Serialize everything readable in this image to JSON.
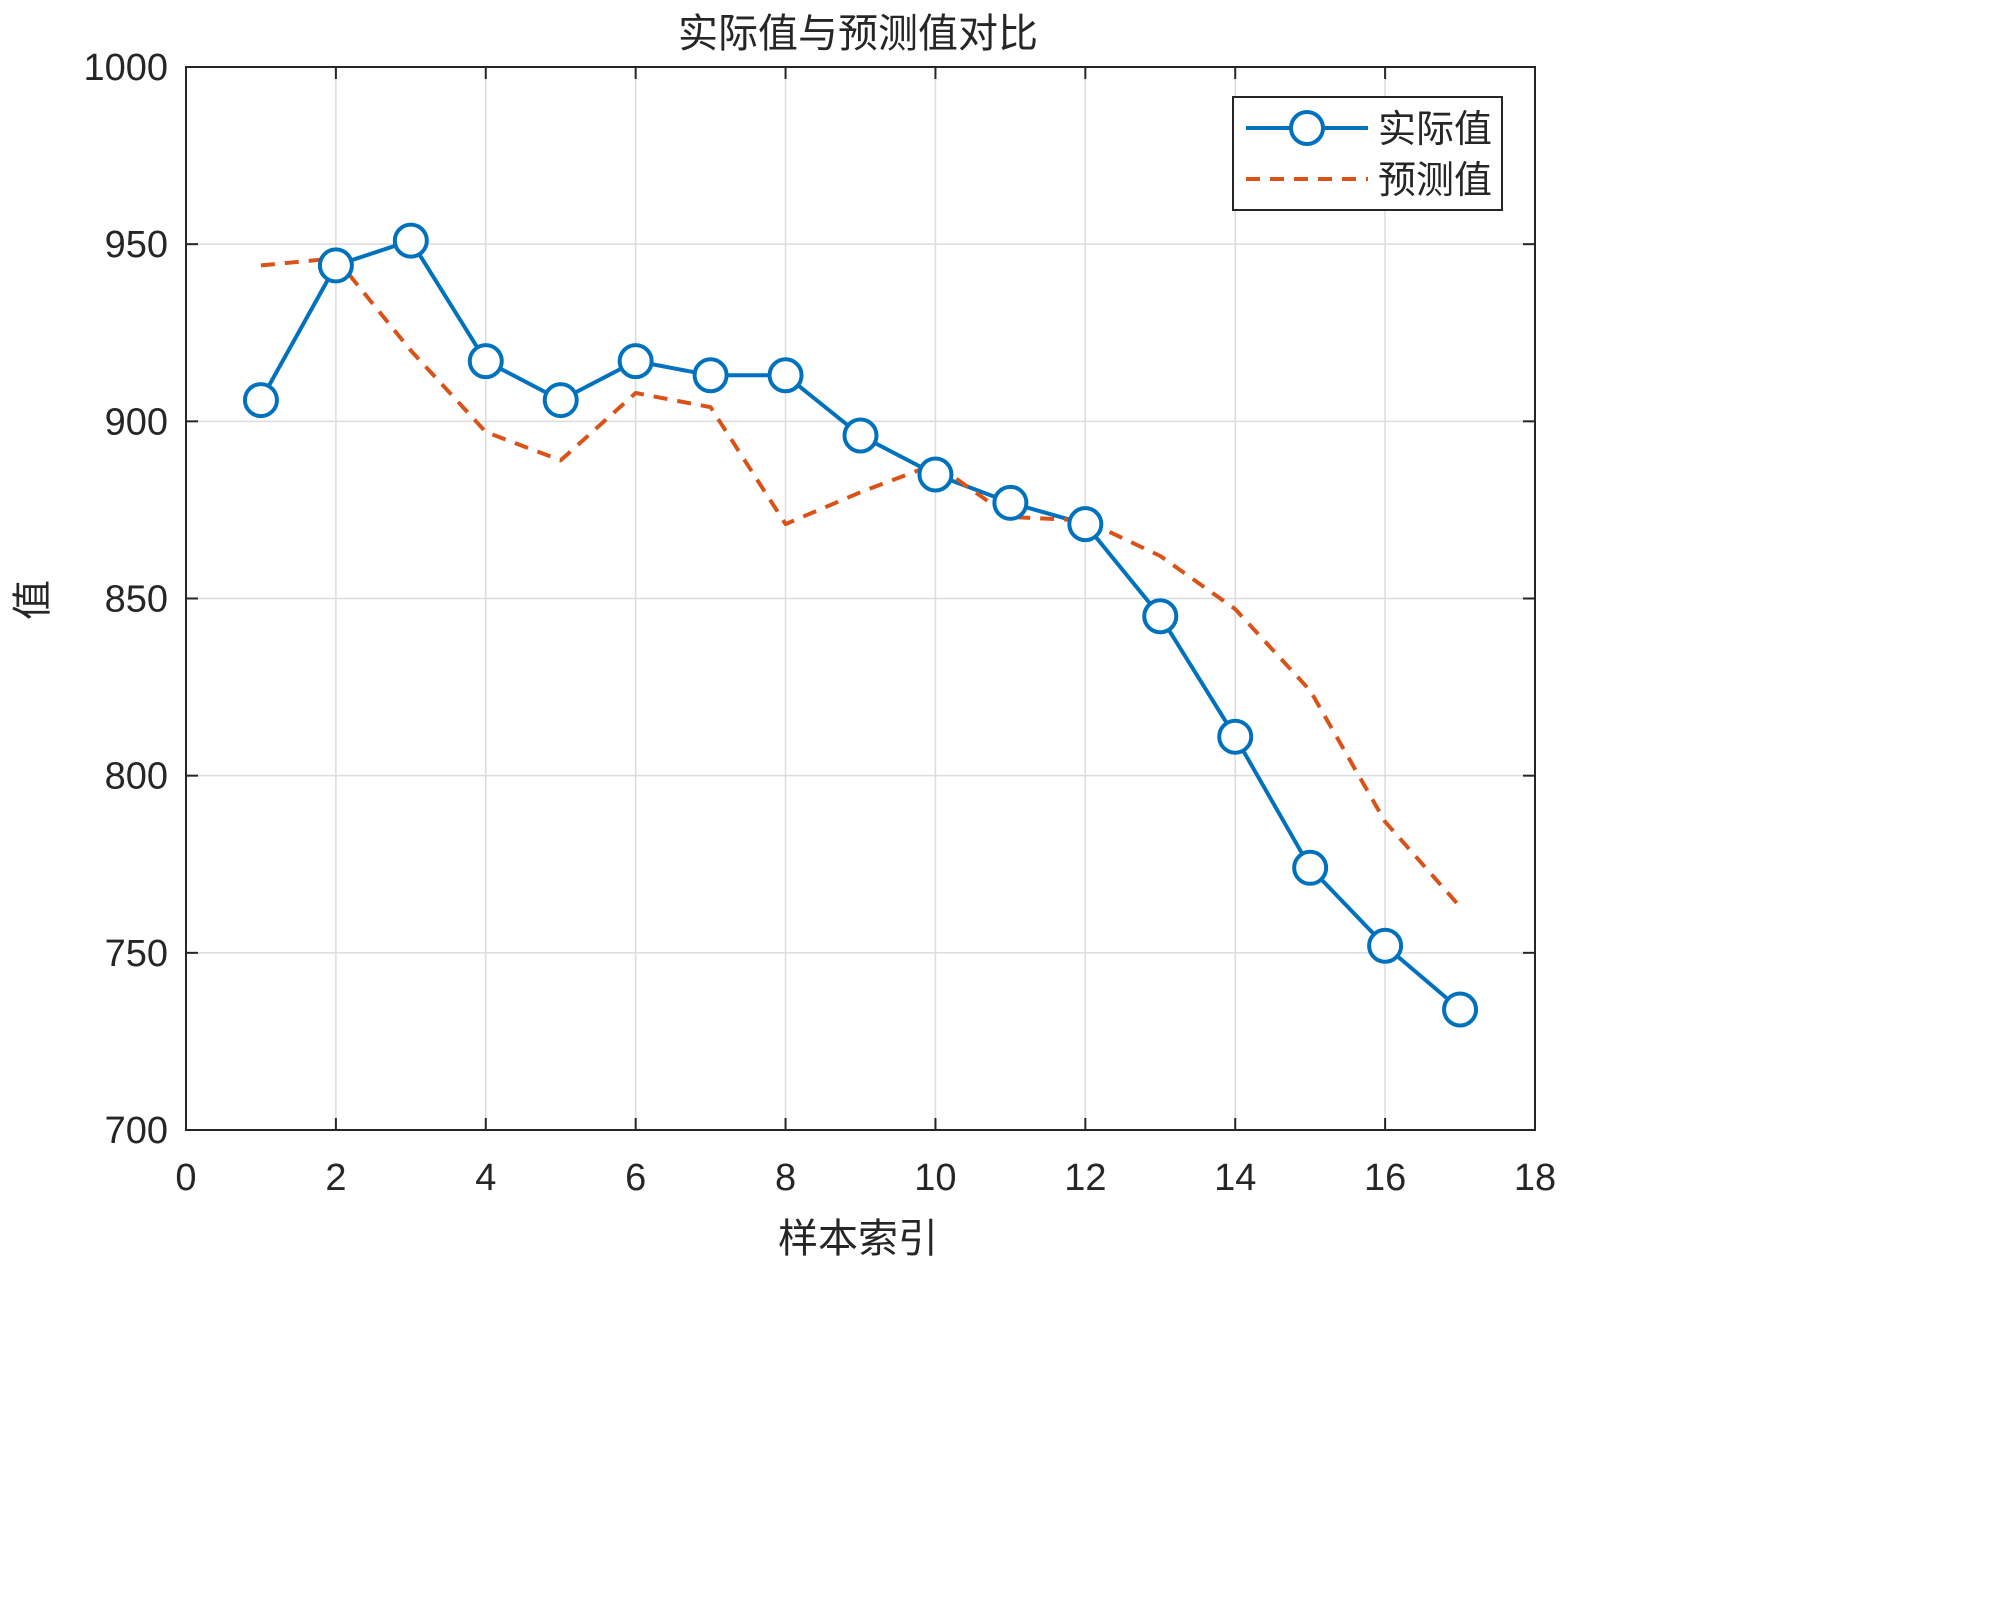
{
  "chart_data": {
    "type": "line",
    "title": "实际值与预测值对比",
    "xlabel": "样本索引",
    "ylabel": "值",
    "xlim": [
      0,
      18
    ],
    "ylim": [
      700,
      1000
    ],
    "xticks": [
      0,
      2,
      4,
      6,
      8,
      10,
      12,
      14,
      16,
      18
    ],
    "yticks": [
      700,
      750,
      800,
      850,
      900,
      950,
      1000
    ],
    "grid": true,
    "legend_position": "top-right",
    "series": [
      {
        "name": "实际值",
        "style": "solid-circle-markers",
        "color": "#0072BD",
        "x": [
          1,
          2,
          3,
          4,
          5,
          6,
          7,
          8,
          9,
          10,
          11,
          12,
          13,
          14,
          15,
          16,
          17
        ],
        "values": [
          906,
          944,
          951,
          917,
          906,
          917,
          913,
          913,
          896,
          885,
          877,
          871,
          845,
          811,
          774,
          752,
          734
        ]
      },
      {
        "name": "预测值",
        "style": "dashed",
        "color": "#D95319",
        "x": [
          1,
          2,
          3,
          4,
          5,
          6,
          7,
          8,
          9,
          10,
          11,
          12,
          13,
          14,
          15,
          16,
          17
        ],
        "values": [
          944,
          946,
          920,
          897,
          889,
          908,
          904,
          871,
          880,
          888,
          873,
          872,
          862,
          847,
          824,
          787,
          763
        ]
      }
    ]
  }
}
